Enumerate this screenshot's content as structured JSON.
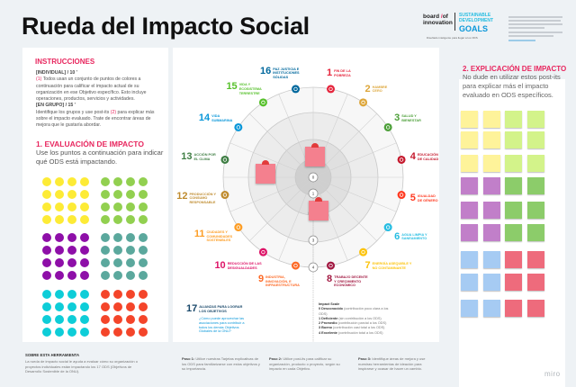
{
  "header": {
    "title": "Rueda del Impacto Social",
    "logo_text": "board of innovation",
    "sdg_logo_top": "SUSTAINABLE DEVELOPMENT",
    "sdg_logo_goals": "GOALS",
    "tagline": "Diseñado inteligente para llegar a los ODS"
  },
  "instructions": {
    "heading": "INSTRUCCIONES",
    "individual": "[INDIVIDUAL] / 10 '",
    "step1_marker": "(1)",
    "step1": " Todos usan un conjunto de puntos de colores a continuación para calificar el impacto actual de su organización en ese Objetivo específico. Esto incluye operaciones, productos, servicios y actividades.",
    "group": "[EN GRUPO] / 15 '",
    "step2_a": "Identifique los grupos y use post-its ",
    "step2_marker": "(2)",
    "step2_b": " para explicar más sobre el impacto evaluado. Trate de encontrar áreas de mejora que le gustaría abordar."
  },
  "evaluation": {
    "heading": "1. EVALUACIÓN DE IMPACTO",
    "text": "Use los puntos a continuación para indicar qué ODS está impactando.",
    "dot_colors": [
      "#fdeb36",
      "#92d050",
      "#8e0fa8",
      "#5ba89d",
      "#0ecdd8",
      "#f4452a"
    ]
  },
  "explanation": {
    "heading": "2. EXPLICACIÓN DE IMPACTO",
    "text": "No dude en utilizar estos post-its para explicar más el impacto evaluado en ODS específicos.",
    "note_colors": [
      [
        "#fef39a",
        "#fef39a",
        "#d3f38a",
        "#d3f38a"
      ],
      [
        "#fef39a",
        "#fef39a",
        "#d3f38a",
        "#d3f38a"
      ],
      [
        "#fef39a",
        "#fef39a",
        "#d3f38a",
        "#d3f38a"
      ],
      [
        "#c17fc9",
        "#c17fc9",
        "#8ccc6a",
        "#8ccc6a"
      ],
      [
        "#c17fc9",
        "#c17fc9",
        "#8ccc6a",
        "#8ccc6a"
      ],
      [
        "#c17fc9",
        "#c17fc9",
        "#8ccc6a",
        "#8ccc6a"
      ],
      [
        "#a6cbf3",
        "#a6cbf3",
        "#ee6b7c",
        "#ee6b7c"
      ],
      [
        "#a6cbf3",
        "#a6cbf3",
        "#ee6b7c",
        "#ee6b7c"
      ],
      [
        "#a6cbf3",
        "#a6cbf3",
        "#ee6b7c",
        "#ee6b7c"
      ]
    ]
  },
  "wheel": {
    "scale_markers": [
      "0",
      "1",
      "2",
      "3",
      "4"
    ],
    "goals": [
      {
        "n": "1",
        "label": "FIN DE LA\nPOBREZA",
        "color": "#e5243b"
      },
      {
        "n": "2",
        "label": "HAMBRE\nCERO",
        "color": "#dda63a"
      },
      {
        "n": "3",
        "label": "SALUD Y\nBIENESTAR",
        "color": "#4c9f38"
      },
      {
        "n": "4",
        "label": "EDUCACIÓN\nDE CALIDAD",
        "color": "#c5192d"
      },
      {
        "n": "5",
        "label": "IGUALDAD\nDE GÉNERO",
        "color": "#ff3a21"
      },
      {
        "n": "6",
        "label": "AGUA LIMPIA Y\nSANEAMIENTO",
        "color": "#26bde2"
      },
      {
        "n": "7",
        "label": "ENERGÍA ASEQUIBLE Y\nNO CONTAMINANTE",
        "color": "#fcc30b"
      },
      {
        "n": "8",
        "label": "TRABAJO DECENTE\nY CRECIMIENTO\nECONÓMICO",
        "color": "#a21942"
      },
      {
        "n": "9",
        "label": "INDUSTRIA,\nINNOVACIÓN, E\nINFRAESTRUCTURA",
        "color": "#fd6925"
      },
      {
        "n": "10",
        "label": "REDUCCIÓN DE LAS\nDESIGUALDADES",
        "color": "#dd1367"
      },
      {
        "n": "11",
        "label": "CIUDADES Y\nCOMUNIDADES\nSOSTENIBLES",
        "color": "#fd9d24"
      },
      {
        "n": "12",
        "label": "PRODUCCIÓN Y\nCONSUMO\nRESPONSABLE",
        "color": "#bf8b2e"
      },
      {
        "n": "13",
        "label": "ACCIÓN POR\nEL CLIMA",
        "color": "#3f7e44"
      },
      {
        "n": "14",
        "label": "VIDA\nSUBMARINA",
        "color": "#0a97d9"
      },
      {
        "n": "15",
        "label": "VIDA Y\nECOSISTEMA\nTERRESTRE",
        "color": "#56c02b"
      },
      {
        "n": "16",
        "label": "PAZ JUSTICIA E\nINSTITUCIONES\nSÓLIDAS",
        "color": "#00689d"
      }
    ],
    "goal17": {
      "n": "17",
      "label": "ALIANZAS PARA LOGRAR\nLOS OBJETIVOS",
      "color": "#19486a",
      "question": "¿Cómo puede aprovechar las asociaciones para contribuir a todos los demás Objetivos Globales de la ONU?"
    }
  },
  "impact_scale": {
    "title": "Impact Scale",
    "items": [
      {
        "k": "0 Desconocido",
        "v": " (contribución poco clara a los ODS)"
      },
      {
        "k": "1 Deficiente",
        "v": " (sin contribución a los ODS)"
      },
      {
        "k": "2 Promedio",
        "v": " (contribución parcial a los ODS)"
      },
      {
        "k": "3 Bueno",
        "v": " (contribución casi total a los ODS)"
      },
      {
        "k": "4 Excelente",
        "v": " (contribución total a los ODS)"
      }
    ]
  },
  "footer": {
    "about_title": "SOBRE ESTA HERRAMIENTA",
    "about_text": "La rueda de impacto social le ayuda a evaluar cómo su organización o proyectos individuales están impactando los 17 ODS (Objetivos de Desarrollo Sostenible de la ONU).",
    "steps": [
      {
        "k": "Paso 1:",
        "v": " Utilice nuestras Tarjetas explicativas de los ODS para familiarizarse con estos objetivos y su importancia."
      },
      {
        "k": "Paso 2:",
        "v": " Utilice post-its para calificar su organización, producto o proyecto, según su impacto en cada Objetivo."
      },
      {
        "k": "Paso 3:",
        "v": " Identifique áreas de mejora y use nuestras herramientas de ideación para inspirarse y ocasar de hacer un cambio."
      }
    ]
  },
  "branding": {
    "miro": "miro"
  }
}
